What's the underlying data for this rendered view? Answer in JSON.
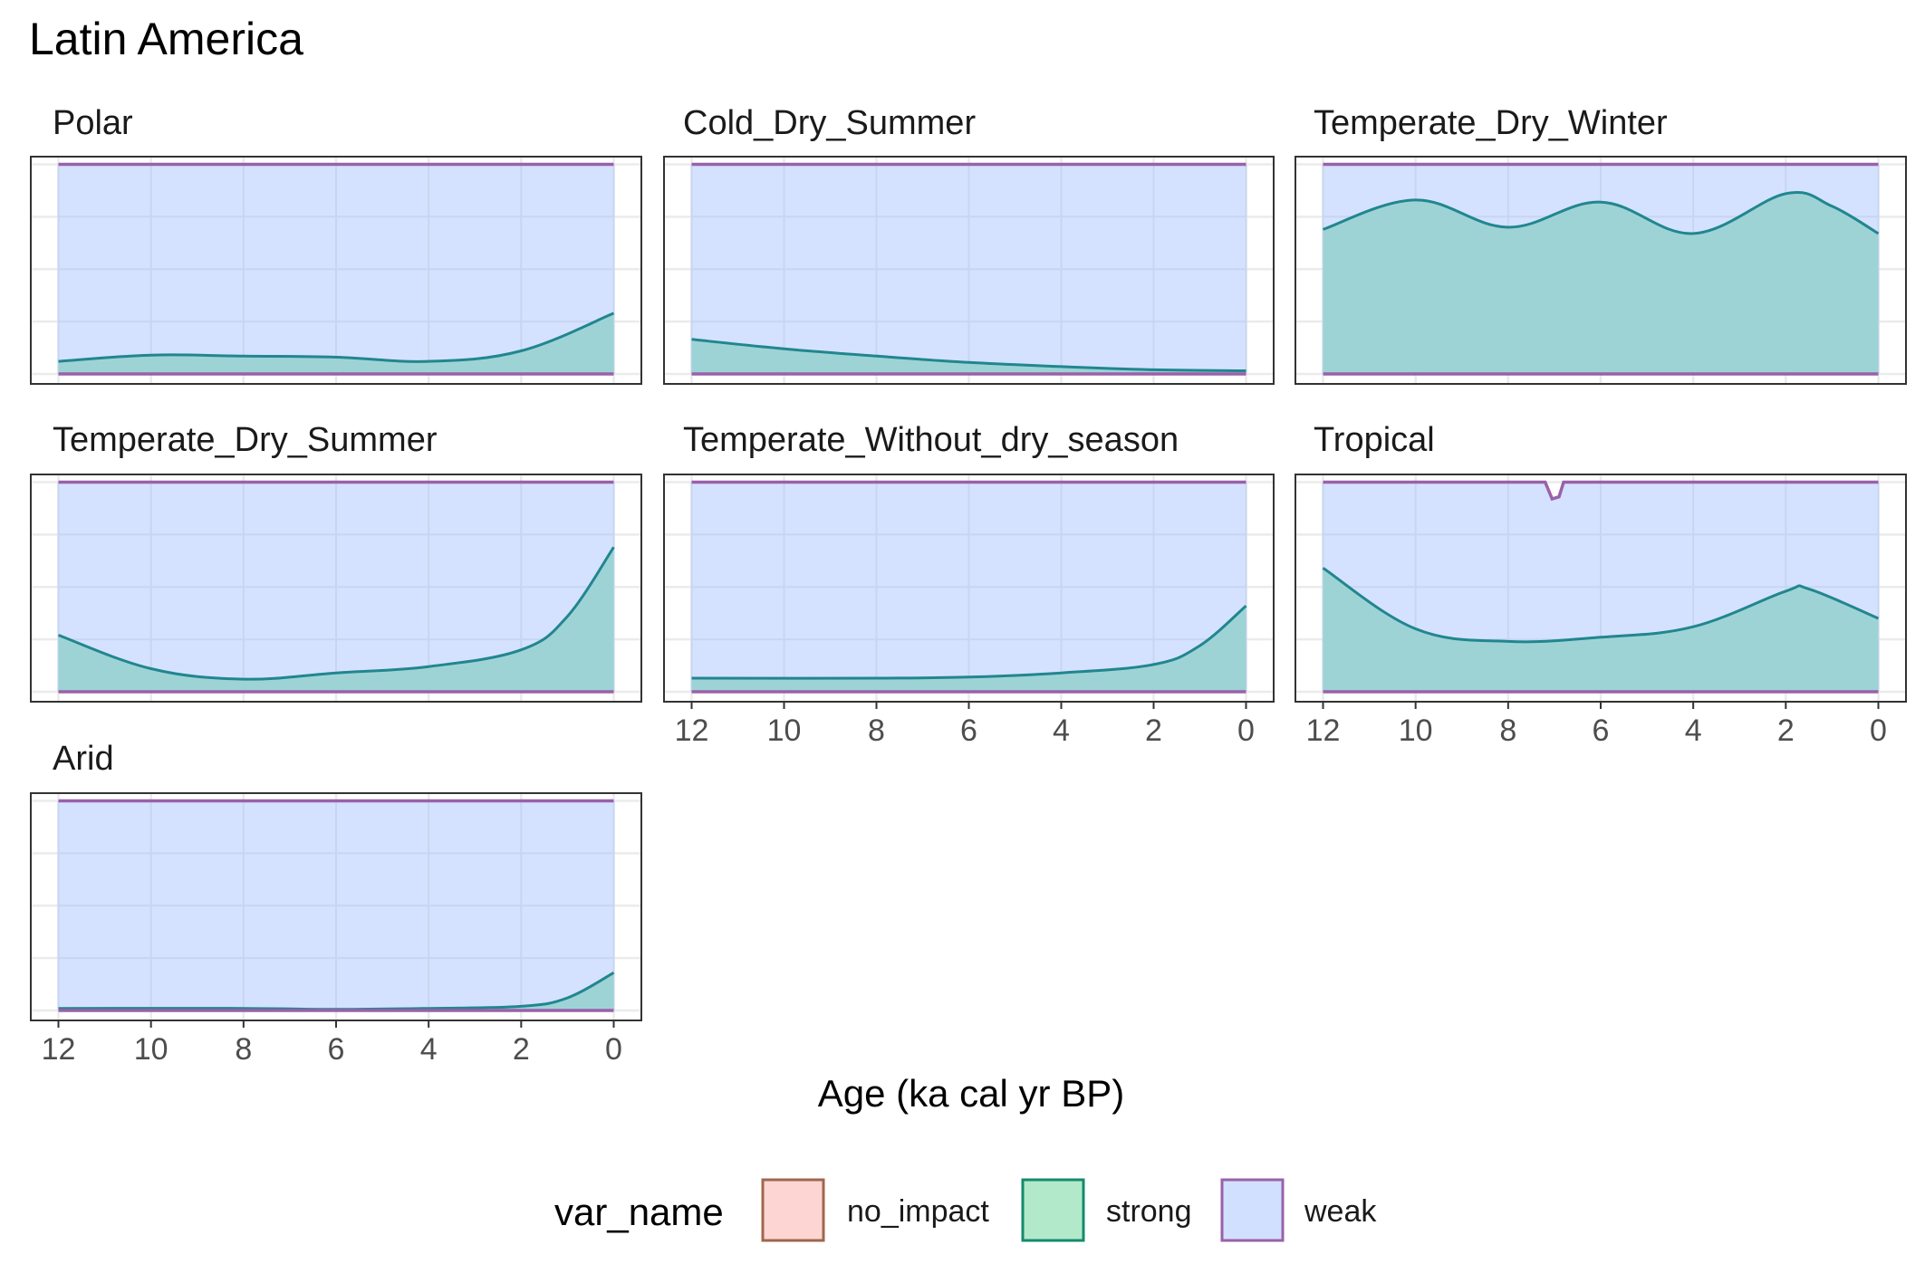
{
  "chart_data": {
    "type": "area",
    "title": "Latin America",
    "xlabel": "Age (ka cal yr BP)",
    "ylabel": "",
    "xlim": [
      12,
      0
    ],
    "x_reversed": true,
    "x_ticks": [
      12,
      10,
      8,
      6,
      4,
      2,
      0
    ],
    "ylim": [
      0,
      1
    ],
    "y_gridlines": [
      0,
      0.25,
      0.5,
      0.75,
      1
    ],
    "grid": true,
    "legend": {
      "title": "var_name",
      "position": "bottom",
      "items": [
        {
          "label": "no_impact",
          "fill": "#fdd6d3",
          "stroke": "#a0664c"
        },
        {
          "label": "strong",
          "fill": "#b3e9cb",
          "stroke": "#168a6e"
        },
        {
          "label": "weak",
          "fill": "#d1e0ff",
          "stroke": "#9a61a9"
        }
      ]
    },
    "colors": {
      "weak_fill": "#d1e0ff",
      "weak_line": "#9a61a9",
      "strong_fill": "#9ed3d6",
      "strong_line": "#21868f",
      "panel_grid": "#ebebeb"
    },
    "facets": [
      {
        "name": "Polar",
        "strong": [
          [
            12,
            0.06
          ],
          [
            10,
            0.09
          ],
          [
            8,
            0.085
          ],
          [
            6,
            0.08
          ],
          [
            4,
            0.06
          ],
          [
            2,
            0.11
          ],
          [
            0,
            0.29
          ]
        ],
        "weak_top": [
          [
            12,
            1
          ],
          [
            0,
            1
          ]
        ]
      },
      {
        "name": "Cold_Dry_Summer",
        "strong": [
          [
            12,
            0.165
          ],
          [
            10,
            0.12
          ],
          [
            8,
            0.085
          ],
          [
            6,
            0.055
          ],
          [
            4,
            0.035
          ],
          [
            2,
            0.02
          ],
          [
            0,
            0.015
          ]
        ],
        "weak_top": [
          [
            12,
            1
          ],
          [
            0,
            1
          ]
        ]
      },
      {
        "name": "Temperate_Dry_Winter",
        "strong": [
          [
            12,
            0.69
          ],
          [
            10,
            0.83
          ],
          [
            8,
            0.7
          ],
          [
            6,
            0.82
          ],
          [
            4,
            0.67
          ],
          [
            2,
            0.86
          ],
          [
            1,
            0.8
          ],
          [
            0,
            0.67
          ]
        ],
        "weak_top": [
          [
            12,
            1
          ],
          [
            0,
            1
          ]
        ]
      },
      {
        "name": "Temperate_Dry_Summer",
        "strong": [
          [
            12,
            0.27
          ],
          [
            10,
            0.11
          ],
          [
            8,
            0.06
          ],
          [
            6,
            0.09
          ],
          [
            4,
            0.12
          ],
          [
            2,
            0.2
          ],
          [
            1,
            0.36
          ],
          [
            0,
            0.69
          ]
        ],
        "weak_top": [
          [
            12,
            1
          ],
          [
            0,
            1
          ]
        ]
      },
      {
        "name": "Temperate_Without_dry_season",
        "strong": [
          [
            12,
            0.065
          ],
          [
            8,
            0.065
          ],
          [
            6,
            0.07
          ],
          [
            4,
            0.09
          ],
          [
            2,
            0.13
          ],
          [
            1,
            0.22
          ],
          [
            0,
            0.41
          ]
        ],
        "weak_top": [
          [
            12,
            1
          ],
          [
            0,
            1
          ]
        ]
      },
      {
        "name": "Tropical",
        "strong": [
          [
            12,
            0.59
          ],
          [
            10,
            0.3
          ],
          [
            8,
            0.24
          ],
          [
            6,
            0.26
          ],
          [
            4,
            0.31
          ],
          [
            2,
            0.48
          ],
          [
            1.5,
            0.49
          ],
          [
            0,
            0.35
          ]
        ],
        "weak_top": [
          [
            12,
            1
          ],
          [
            7.2,
            1
          ],
          [
            7.05,
            0.92
          ],
          [
            6.9,
            0.93
          ],
          [
            6.8,
            1
          ],
          [
            0,
            1
          ]
        ]
      },
      {
        "name": "Arid",
        "strong": [
          [
            12,
            0.01
          ],
          [
            8,
            0.01
          ],
          [
            6,
            0.005
          ],
          [
            4,
            0.01
          ],
          [
            2,
            0.02
          ],
          [
            1,
            0.06
          ],
          [
            0,
            0.18
          ]
        ],
        "weak_top": [
          [
            12,
            1
          ],
          [
            0,
            1
          ]
        ]
      }
    ]
  }
}
